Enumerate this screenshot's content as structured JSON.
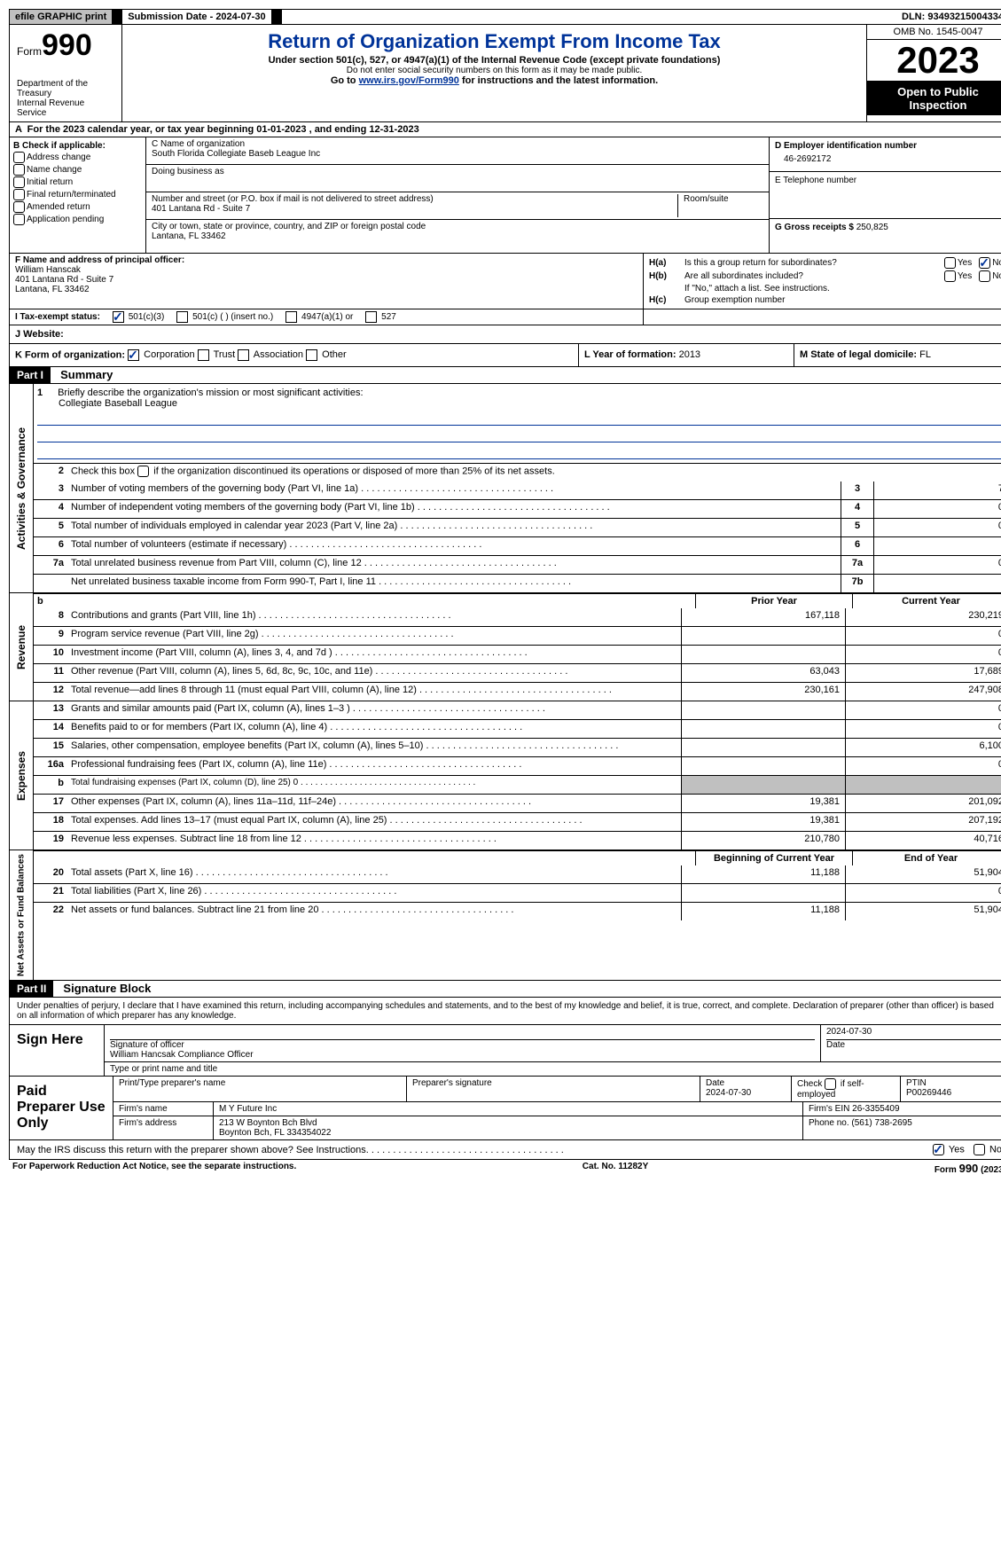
{
  "topbar": {
    "efile": "efile GRAPHIC print",
    "submission_label": "Submission Date - 2024-07-30",
    "dln": "DLN: 93493215004334"
  },
  "header": {
    "form_word": "Form",
    "form_number": "990",
    "dept": "Department of the Treasury",
    "irs": "Internal Revenue Service",
    "title": "Return of Organization Exempt From Income Tax",
    "subtitle": "Under section 501(c), 527, or 4947(a)(1) of the Internal Revenue Code (except private foundations)",
    "ssn_note": "Do not enter social security numbers on this form as it may be made public.",
    "goto_prefix": "Go to ",
    "goto_link": "www.irs.gov/Form990",
    "goto_suffix": " for instructions and the latest information.",
    "omb": "OMB No. 1545-0047",
    "year": "2023",
    "open": "Open to Public Inspection"
  },
  "rowA": "For the 2023 calendar year, or tax year beginning 01-01-2023   , and ending 12-31-2023",
  "sectionB": {
    "header": "B Check if applicable:",
    "items": [
      "Address change",
      "Name change",
      "Initial return",
      "Final return/terminated",
      "Amended return",
      "Application pending"
    ]
  },
  "sectionC": {
    "name_label": "C Name of organization",
    "name": "South Florida Collegiate Baseb League Inc",
    "dba_label": "Doing business as",
    "dba": "",
    "addr_label": "Number and street (or P.O. box if mail is not delivered to street address)",
    "addr": "401 Lantana Rd - Suite 7",
    "room_label": "Room/suite",
    "city_label": "City or town, state or province, country, and ZIP or foreign postal code",
    "city": "Lantana, FL  33462"
  },
  "sectionD": {
    "label": "D Employer identification number",
    "ein": "46-2692172",
    "tel_label": "E Telephone number",
    "tel": "",
    "gross_label": "G Gross receipts $",
    "gross": "250,825"
  },
  "sectionF": {
    "label": "F  Name and address of principal officer:",
    "name": "William Hanscak",
    "addr1": "401 Lantana Rd - Suite 7",
    "addr2": "Lantana, FL  33462"
  },
  "sectionH": {
    "ha_label": "H(a)",
    "ha_text": "Is this a group return for subordinates?",
    "hb_label": "H(b)",
    "hb_text": "Are all subordinates included?",
    "hb_note": "If \"No,\" attach a list. See instructions.",
    "hc_label": "H(c)",
    "hc_text": "Group exemption number",
    "yes": "Yes",
    "no": "No"
  },
  "rowI": {
    "label": "I  Tax-exempt status:",
    "opts": [
      "501(c)(3)",
      "501(c) (  ) (insert no.)",
      "4947(a)(1) or",
      "527"
    ]
  },
  "rowJ": {
    "label": "J  Website:",
    "value": ""
  },
  "rowK": {
    "label": "K Form of organization:",
    "opts": [
      "Corporation",
      "Trust",
      "Association",
      "Other"
    ]
  },
  "rowL": {
    "label": "L Year of formation:",
    "value": "2013"
  },
  "rowM": {
    "label": "M State of legal domicile:",
    "value": "FL"
  },
  "partI": {
    "header": "Part I",
    "title": "Summary",
    "gov_label": "Activities & Governance",
    "rev_label": "Revenue",
    "exp_label": "Expenses",
    "net_label": "Net Assets or Fund Balances",
    "line1_num": "1",
    "line1_text": "Briefly describe the organization's mission or most significant activities:",
    "line1_value": "Collegiate Baseball League",
    "line2_num": "2",
    "line2_text": "Check this box      if the organization discontinued its operations or disposed of more than 25% of its net assets.",
    "gov_rows": [
      {
        "num": "3",
        "text": "Number of voting members of the governing body (Part VI, line 1a)",
        "box": "3",
        "val": "7"
      },
      {
        "num": "4",
        "text": "Number of independent voting members of the governing body (Part VI, line 1b)",
        "box": "4",
        "val": "0"
      },
      {
        "num": "5",
        "text": "Total number of individuals employed in calendar year 2023 (Part V, line 2a)",
        "box": "5",
        "val": "0"
      },
      {
        "num": "6",
        "text": "Total number of volunteers (estimate if necessary)",
        "box": "6",
        "val": ""
      },
      {
        "num": "7a",
        "text": "Total unrelated business revenue from Part VIII, column (C), line 12",
        "box": "7a",
        "val": "0"
      },
      {
        "num": "",
        "text": "Net unrelated business taxable income from Form 990-T, Part I, line 11",
        "box": "7b",
        "val": ""
      }
    ],
    "prior_year": "Prior Year",
    "current_year": "Current Year",
    "rev_rows": [
      {
        "num": "8",
        "text": "Contributions and grants (Part VIII, line 1h)",
        "prior": "167,118",
        "curr": "230,219"
      },
      {
        "num": "9",
        "text": "Program service revenue (Part VIII, line 2g)",
        "prior": "",
        "curr": "0"
      },
      {
        "num": "10",
        "text": "Investment income (Part VIII, column (A), lines 3, 4, and 7d )",
        "prior": "",
        "curr": "0"
      },
      {
        "num": "11",
        "text": "Other revenue (Part VIII, column (A), lines 5, 6d, 8c, 9c, 10c, and 11e)",
        "prior": "63,043",
        "curr": "17,689"
      },
      {
        "num": "12",
        "text": "Total revenue—add lines 8 through 11 (must equal Part VIII, column (A), line 12)",
        "prior": "230,161",
        "curr": "247,908"
      }
    ],
    "exp_rows": [
      {
        "num": "13",
        "text": "Grants and similar amounts paid (Part IX, column (A), lines 1–3 )",
        "prior": "",
        "curr": "0"
      },
      {
        "num": "14",
        "text": "Benefits paid to or for members (Part IX, column (A), line 4)",
        "prior": "",
        "curr": "0"
      },
      {
        "num": "15",
        "text": "Salaries, other compensation, employee benefits (Part IX, column (A), lines 5–10)",
        "prior": "",
        "curr": "6,100"
      },
      {
        "num": "16a",
        "text": "Professional fundraising fees (Part IX, column (A), line 11e)",
        "prior": "",
        "curr": "0"
      },
      {
        "num": "b",
        "text": "Total fundraising expenses (Part IX, column (D), line 25) 0",
        "prior": "GREY",
        "curr": "GREY",
        "small": true
      },
      {
        "num": "17",
        "text": "Other expenses (Part IX, column (A), lines 11a–11d, 11f–24e)",
        "prior": "19,381",
        "curr": "201,092"
      },
      {
        "num": "18",
        "text": "Total expenses. Add lines 13–17 (must equal Part IX, column (A), line 25)",
        "prior": "19,381",
        "curr": "207,192"
      },
      {
        "num": "19",
        "text": "Revenue less expenses. Subtract line 18 from line 12",
        "prior": "210,780",
        "curr": "40,716"
      }
    ],
    "bcy": "Beginning of Current Year",
    "eoy": "End of Year",
    "net_rows": [
      {
        "num": "20",
        "text": "Total assets (Part X, line 16)",
        "prior": "11,188",
        "curr": "51,904"
      },
      {
        "num": "21",
        "text": "Total liabilities (Part X, line 26)",
        "prior": "",
        "curr": "0"
      },
      {
        "num": "22",
        "text": "Net assets or fund balances. Subtract line 21 from line 20",
        "prior": "11,188",
        "curr": "51,904"
      }
    ]
  },
  "partII": {
    "header": "Part II",
    "title": "Signature Block",
    "declaration": "Under penalties of perjury, I declare that I have examined this return, including accompanying schedules and statements, and to the best of my knowledge and belief, it is true, correct, and complete. Declaration of preparer (other than officer) is based on all information of which preparer has any knowledge.",
    "sign_here": "Sign Here",
    "sig_officer": "Signature of officer",
    "officer_name": "William Hancsak  Compliance Officer",
    "type_name": "Type or print name and title",
    "date_label": "Date",
    "sig_date": "2024-07-30",
    "paid_label": "Paid Preparer Use Only",
    "prep_name_label": "Print/Type preparer's name",
    "prep_sig_label": "Preparer's signature",
    "prep_date": "2024-07-30",
    "check_if": "Check        if self-employed",
    "ptin_label": "PTIN",
    "ptin": "P00269446",
    "firm_name_label": "Firm's name",
    "firm_name": "M Y Future Inc",
    "firm_ein_label": "Firm's EIN",
    "firm_ein": "26-3355409",
    "firm_addr_label": "Firm's address",
    "firm_addr1": "213 W Boynton Bch Blvd",
    "firm_addr2": "Boynton Bch, FL  334354022",
    "phone_label": "Phone no.",
    "phone": "(561) 738-2695",
    "discuss": "May the IRS discuss this return with the preparer shown above? See Instructions."
  },
  "footer": {
    "left": "For Paperwork Reduction Act Notice, see the separate instructions.",
    "center": "Cat. No. 11282Y",
    "right": "Form 990 (2023)"
  }
}
